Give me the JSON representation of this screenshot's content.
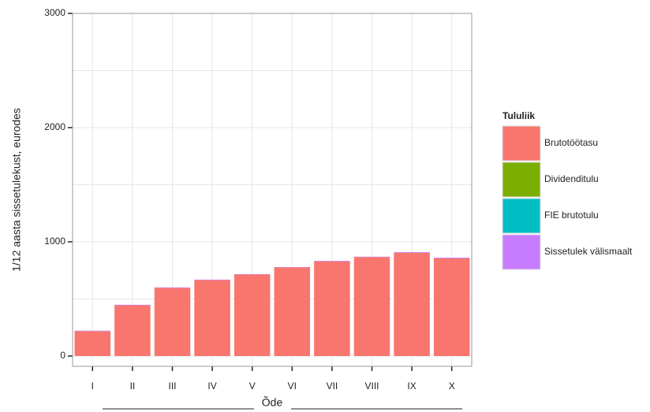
{
  "chart_data": {
    "type": "bar",
    "stacked": true,
    "grid": true,
    "legend_position": "right",
    "y_label": "1/12 aasta sissetulekust, eurodes",
    "x_label": "Õde",
    "legend_title": "Tululiik",
    "categories": [
      "I",
      "II",
      "III",
      "IV",
      "V",
      "VI",
      "VII",
      "VIII",
      "IX",
      "X"
    ],
    "series": [
      {
        "name": "Brutotöötasu",
        "color": "#F8766D",
        "values": [
          218,
          445,
          597,
          665,
          714,
          776,
          829,
          867,
          905,
          855
        ]
      },
      {
        "name": "Dividenditulu",
        "color": "#7CAE00",
        "values": [
          0,
          0,
          0,
          0,
          0,
          0,
          0,
          0,
          0,
          0
        ]
      },
      {
        "name": "FIE brutotulu",
        "color": "#00BFC4",
        "values": [
          0,
          0,
          0,
          0,
          0,
          0,
          0,
          0,
          0,
          0
        ]
      },
      {
        "name": "Sissetulek välismaalt",
        "color": "#C77CFF",
        "values": [
          4,
          4,
          4,
          4,
          3,
          3,
          5,
          3,
          5,
          6
        ]
      }
    ],
    "ylim": [
      -90,
      3000
    ],
    "yticks": [
      0,
      1000,
      2000,
      3000
    ]
  }
}
